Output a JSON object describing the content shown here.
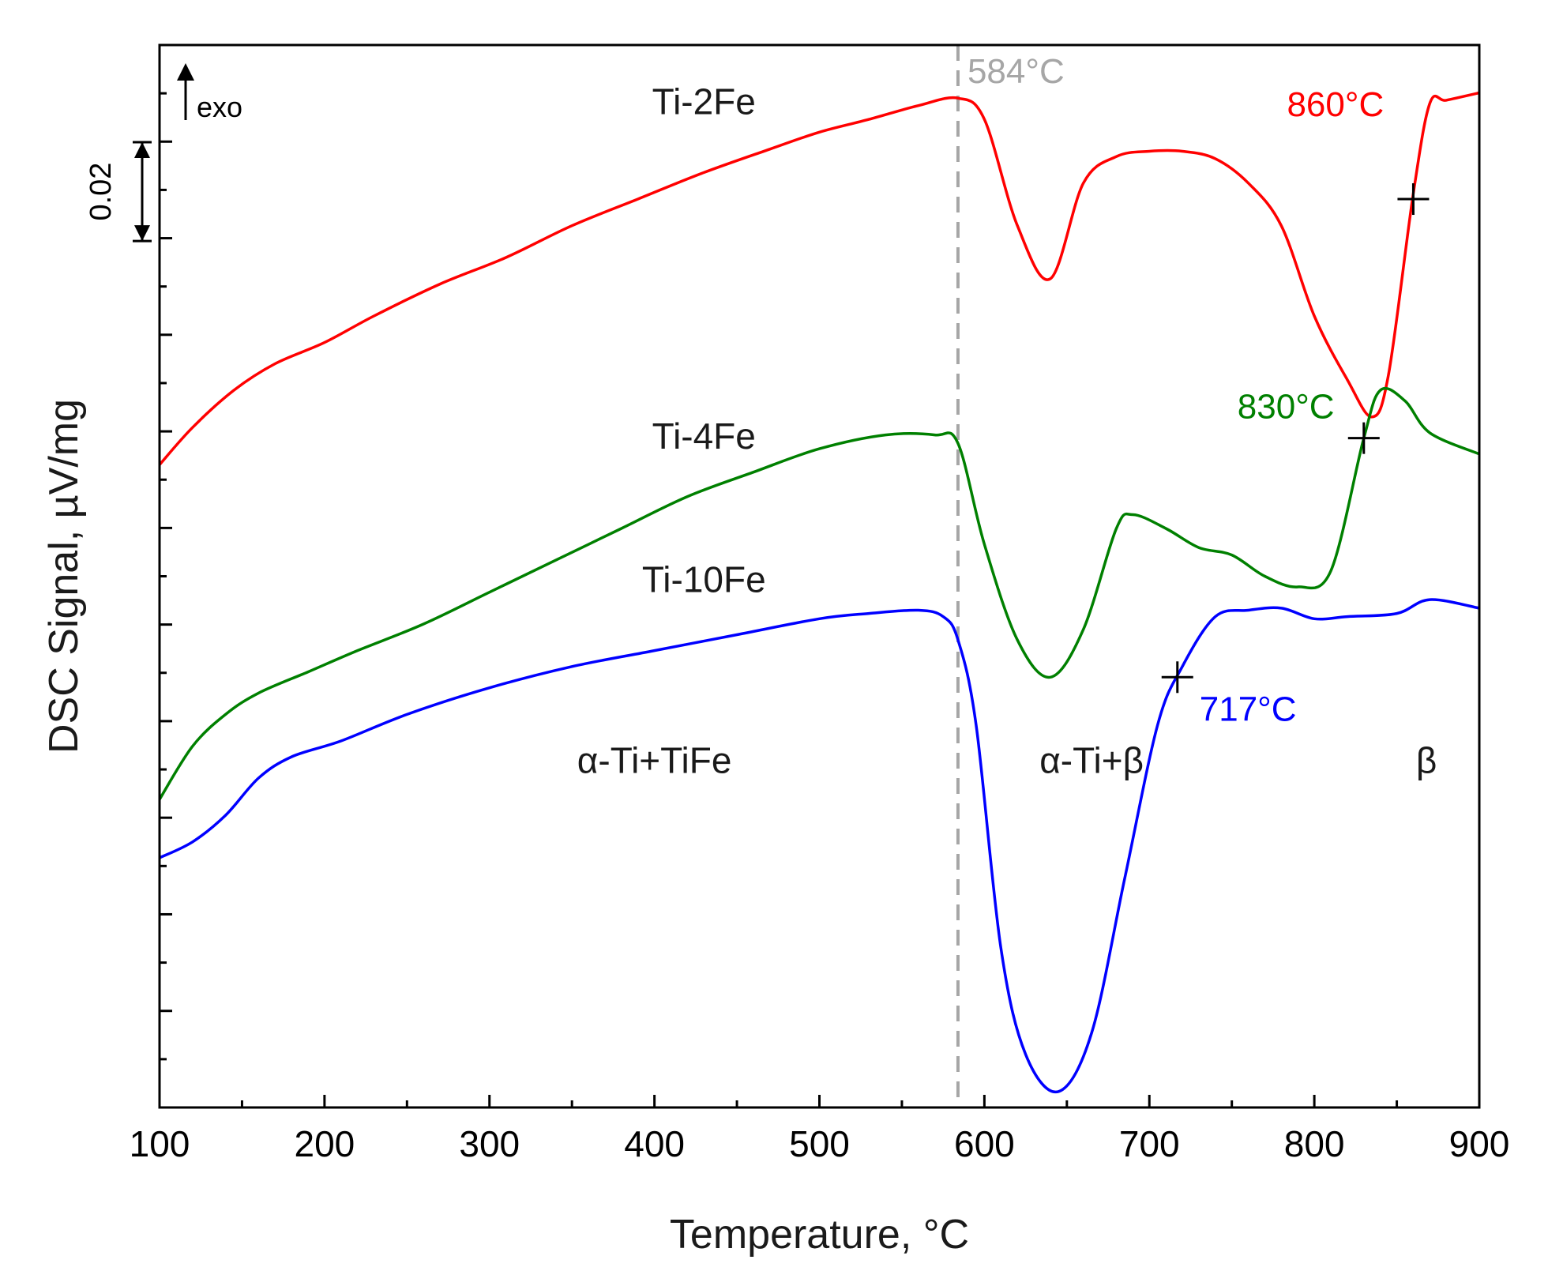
{
  "chart_data": {
    "type": "line",
    "title": "",
    "xlabel": "Temperature, °C",
    "ylabel": "DSC Signal, µV/mg",
    "xlim": [
      100,
      900
    ],
    "ylim": [
      0,
      1
    ],
    "x_ticks": [
      100,
      200,
      300,
      400,
      500,
      600,
      700,
      800,
      900
    ],
    "grid": false,
    "legend": "none (series labelled inline)",
    "scale_bar": {
      "label": "0.02",
      "value": 0.093
    },
    "exo_label": "exo",
    "series": [
      {
        "name": "Ti-2Fe",
        "color": "#ff0000",
        "x": [
          100,
          120,
          145,
          170,
          200,
          230,
          270,
          310,
          350,
          390,
          430,
          470,
          500,
          530,
          560,
          584,
          600,
          620,
          640,
          660,
          680,
          700,
          720,
          740,
          760,
          780,
          800,
          820,
          835,
          845,
          860,
          870,
          880,
          900
        ],
        "y": [
          0.605,
          0.64,
          0.675,
          0.7,
          0.72,
          0.745,
          0.775,
          0.8,
          0.83,
          0.855,
          0.88,
          0.902,
          0.918,
          0.93,
          0.943,
          0.95,
          0.93,
          0.83,
          0.78,
          0.87,
          0.895,
          0.9,
          0.9,
          0.893,
          0.87,
          0.83,
          0.745,
          0.685,
          0.65,
          0.69,
          0.86,
          0.945,
          0.948,
          0.955
        ]
      },
      {
        "name": "Ti-4Fe",
        "color": "#008000",
        "x": [
          100,
          120,
          140,
          160,
          190,
          220,
          260,
          300,
          340,
          380,
          420,
          460,
          500,
          540,
          570,
          584,
          600,
          620,
          640,
          660,
          680,
          690,
          710,
          730,
          750,
          770,
          790,
          810,
          830,
          840,
          855,
          870,
          900
        ],
        "y": [
          0.29,
          0.34,
          0.37,
          0.39,
          0.41,
          0.43,
          0.455,
          0.485,
          0.515,
          0.545,
          0.575,
          0.598,
          0.62,
          0.633,
          0.633,
          0.625,
          0.53,
          0.44,
          0.405,
          0.45,
          0.545,
          0.558,
          0.545,
          0.527,
          0.52,
          0.5,
          0.49,
          0.505,
          0.63,
          0.675,
          0.665,
          0.635,
          0.615
        ]
      },
      {
        "name": "Ti-10Fe",
        "color": "#0000ff",
        "x": [
          100,
          120,
          140,
          160,
          180,
          210,
          250,
          300,
          350,
          400,
          450,
          500,
          530,
          560,
          575,
          584,
          595,
          610,
          625,
          645,
          665,
          685,
          705,
          720,
          740,
          760,
          780,
          800,
          820,
          850,
          870,
          900
        ],
        "y": [
          0.235,
          0.25,
          0.275,
          0.31,
          0.33,
          0.345,
          0.37,
          0.395,
          0.415,
          0.43,
          0.445,
          0.46,
          0.465,
          0.468,
          0.462,
          0.44,
          0.36,
          0.15,
          0.05,
          0.015,
          0.07,
          0.215,
          0.36,
          0.415,
          0.462,
          0.468,
          0.47,
          0.46,
          0.462,
          0.465,
          0.478,
          0.47
        ]
      }
    ],
    "vline": {
      "x": 584,
      "label": "584°C",
      "color": "#a6a6a6"
    },
    "transition_markers": [
      {
        "series": "Ti-2Fe",
        "x": 860,
        "y": 0.855,
        "label": "860°C",
        "color": "#ff0000"
      },
      {
        "series": "Ti-4Fe",
        "x": 830,
        "y": 0.63,
        "label": "830°C",
        "color": "#008000"
      },
      {
        "series": "Ti-10Fe",
        "x": 717,
        "y": 0.405,
        "label": "717°C",
        "color": "#0000ff"
      }
    ],
    "series_labels": [
      {
        "text": "Ti-2Fe",
        "x": 430,
        "y": 0.935
      },
      {
        "text": "Ti-4Fe",
        "x": 430,
        "y": 0.62
      },
      {
        "text": "Ti-10Fe",
        "x": 430,
        "y": 0.485
      }
    ],
    "region_labels": [
      {
        "text": "α-Ti+TiFe",
        "x": 400,
        "y": 0.315
      },
      {
        "text": "α-Ti+β",
        "x": 665,
        "y": 0.315
      },
      {
        "text": "β",
        "x": 868,
        "y": 0.315
      }
    ]
  }
}
